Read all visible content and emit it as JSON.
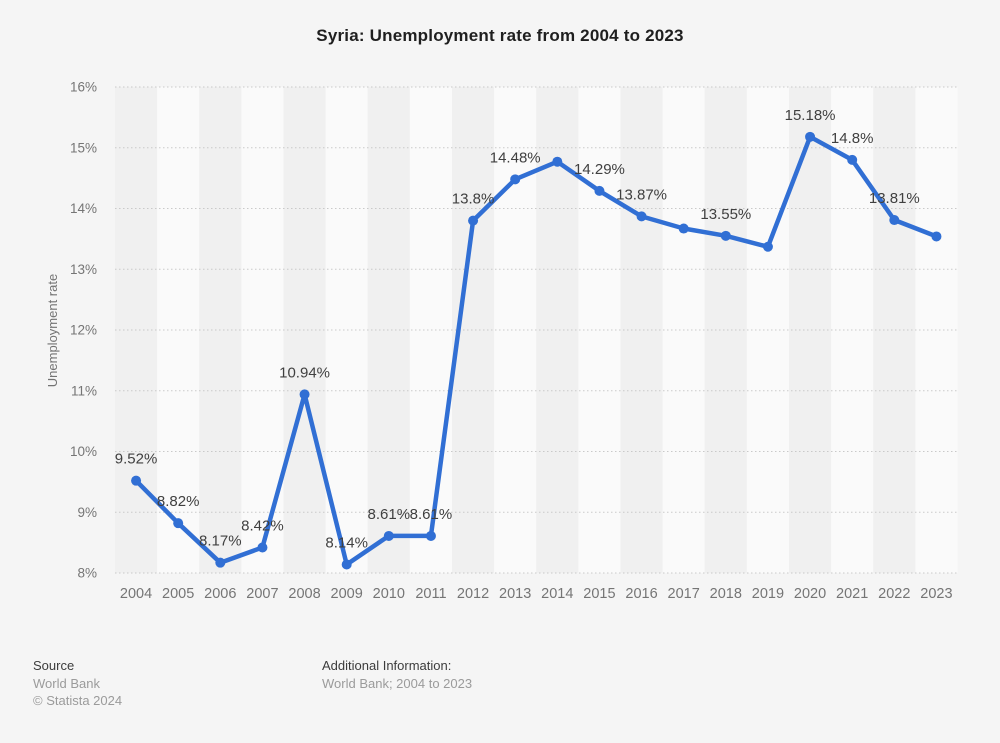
{
  "title": "Syria: Unemployment rate from 2004 to 2023",
  "chart_data": {
    "type": "line",
    "title": "Syria: Unemployment rate from 2004 to 2023",
    "xlabel": "",
    "ylabel": "Unemployment rate",
    "x": [
      "2004",
      "2005",
      "2006",
      "2007",
      "2008",
      "2009",
      "2010",
      "2011",
      "2012",
      "2013",
      "2014",
      "2015",
      "2016",
      "2017",
      "2018",
      "2019",
      "2020",
      "2021",
      "2022",
      "2023"
    ],
    "values": [
      9.52,
      8.82,
      8.17,
      8.42,
      10.94,
      8.14,
      8.61,
      8.61,
      13.8,
      14.48,
      14.77,
      14.29,
      13.87,
      13.67,
      13.55,
      13.37,
      15.18,
      14.8,
      13.81,
      13.54
    ],
    "point_labels": [
      "9.52%",
      "8.82%",
      "8.17%",
      "8.42%",
      "10.94%",
      "8.14%",
      "8.61%",
      "8.61%",
      "13.8%",
      "14.48%",
      "",
      "14.29%",
      "13.87%",
      "",
      "13.55%",
      "",
      "15.18%",
      "14.8%",
      "13.81%",
      ""
    ],
    "ylim": [
      8,
      16
    ],
    "y_ticks": [
      "8%",
      "9%",
      "10%",
      "11%",
      "12%",
      "13%",
      "14%",
      "15%",
      "16%"
    ],
    "grid": "horizontal-dotted",
    "legend": "none",
    "line_color": "#316fd4",
    "marker_color": "#316fd4",
    "band_colors": [
      "#f0f0f0",
      "#fafafa"
    ],
    "gridline_color": "#c9c9c9",
    "tick_label_color": "#757575",
    "point_label_color": "#404040"
  },
  "footer": {
    "source_heading": "Source",
    "source_lines": [
      "World Bank",
      "© Statista 2024"
    ],
    "additional_heading": "Additional Information:",
    "additional_text": "World Bank; 2004 to 2023"
  }
}
